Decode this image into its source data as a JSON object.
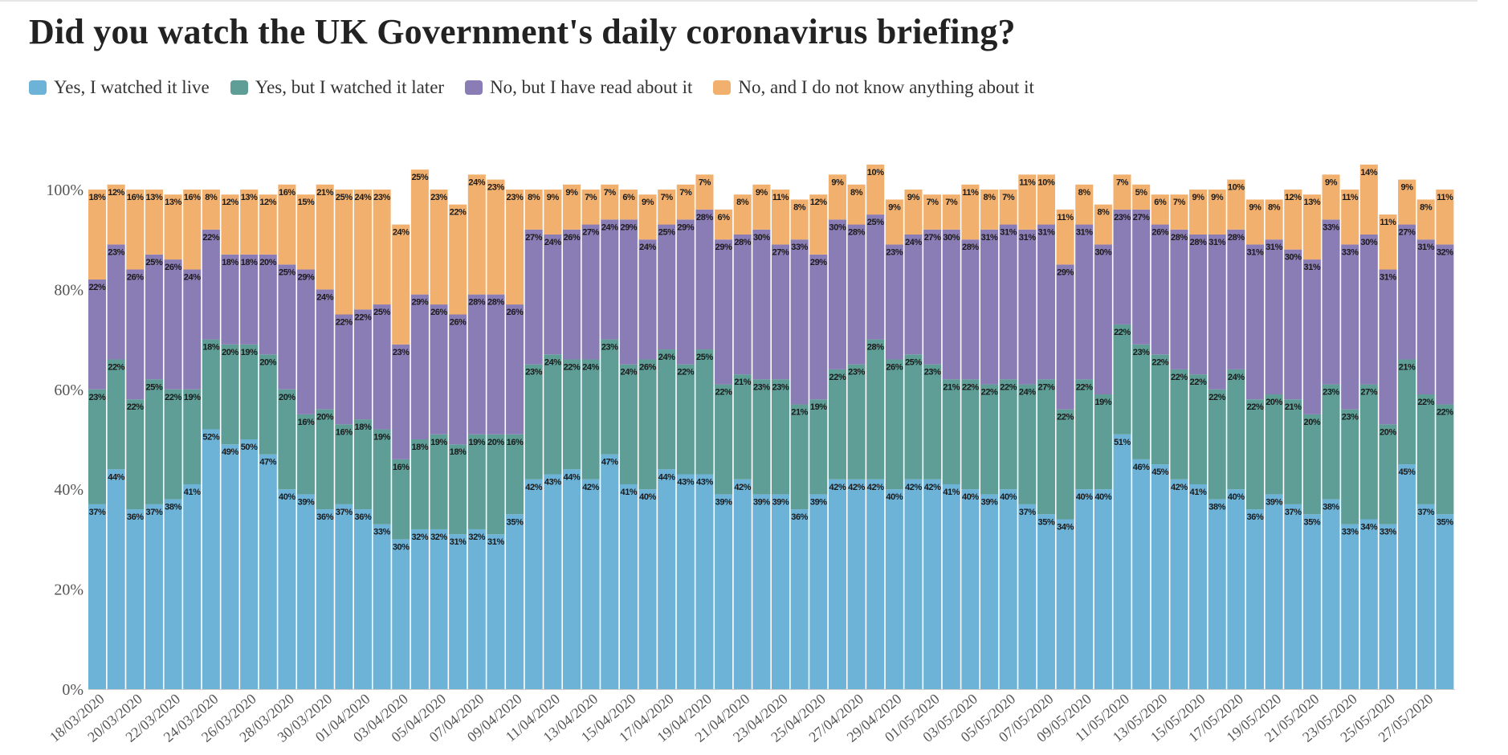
{
  "chart_data": {
    "type": "bar",
    "stacked": true,
    "title": "Did you watch the UK Government's daily coronavirus briefing?",
    "xlabel": "",
    "ylabel": "",
    "ylim": [
      0,
      100
    ],
    "y_ticks": [
      "0%",
      "20%",
      "40%",
      "60%",
      "80%",
      "100%"
    ],
    "grid": false,
    "legend_position": "top-left",
    "x_tick_labels": [
      "18/03/2020",
      "20/03/2020",
      "22/03/2020",
      "24/03/2020",
      "26/03/2020",
      "28/03/2020",
      "30/03/2020",
      "01/04/2020",
      "03/04/2020",
      "05/04/2020",
      "07/04/2020",
      "09/04/2020",
      "11/04/2020",
      "13/04/2020",
      "15/04/2020",
      "17/04/2020",
      "19/04/2020",
      "21/04/2020",
      "23/04/2020",
      "25/04/2020",
      "27/04/2020",
      "29/04/2020",
      "01/05/2020",
      "03/05/2020",
      "05/05/2020",
      "07/05/2020",
      "09/05/2020",
      "11/05/2020",
      "13/05/2020",
      "15/05/2020",
      "17/05/2020",
      "19/05/2020",
      "21/05/2020",
      "23/05/2020",
      "25/05/2020",
      "27/05/2020"
    ],
    "series": [
      {
        "name": "Yes, I watched it live",
        "color": "#6db3d8",
        "values": [
          37,
          44,
          36,
          37,
          38,
          41,
          52,
          49,
          50,
          47,
          40,
          39,
          36,
          37,
          36,
          33,
          30,
          32,
          32,
          31,
          32,
          31,
          35,
          42,
          43,
          44,
          42,
          47,
          41,
          40,
          44,
          43,
          43,
          39,
          42,
          39,
          39,
          36,
          39,
          42,
          42,
          42,
          40,
          42,
          42,
          41,
          40,
          39,
          40,
          37,
          35,
          34,
          40,
          40,
          51,
          46,
          45,
          42,
          41,
          38,
          40,
          36,
          39,
          37,
          35,
          38,
          33,
          34,
          33,
          45,
          37,
          35
        ]
      },
      {
        "name": "Yes, but I watched it later",
        "color": "#5e9e96",
        "values": [
          23,
          22,
          22,
          25,
          22,
          19,
          18,
          20,
          19,
          20,
          20,
          16,
          20,
          16,
          18,
          19,
          16,
          18,
          19,
          18,
          19,
          20,
          16,
          23,
          24,
          22,
          24,
          23,
          24,
          26,
          24,
          22,
          25,
          22,
          21,
          23,
          23,
          21,
          19,
          22,
          23,
          28,
          26,
          25,
          23,
          21,
          22,
          22,
          22,
          24,
          27,
          22,
          22,
          19,
          22,
          23,
          22,
          22,
          22,
          22,
          24,
          22,
          20,
          21,
          20,
          23,
          23,
          27,
          20,
          21,
          22,
          22
        ]
      },
      {
        "name": "No, but I have read about it",
        "color": "#8a7cb5",
        "values": [
          22,
          23,
          26,
          25,
          26,
          24,
          22,
          18,
          18,
          20,
          25,
          29,
          24,
          22,
          22,
          25,
          23,
          29,
          26,
          26,
          28,
          28,
          26,
          27,
          24,
          26,
          27,
          24,
          29,
          24,
          25,
          29,
          28,
          29,
          28,
          30,
          27,
          33,
          29,
          30,
          28,
          25,
          23,
          24,
          27,
          30,
          28,
          31,
          31,
          31,
          31,
          29,
          31,
          30,
          23,
          27,
          26,
          28,
          28,
          31,
          28,
          31,
          31,
          30,
          31,
          33,
          33,
          30,
          31,
          27,
          31,
          32
        ]
      },
      {
        "name": "No, and I do not know anything about it",
        "color": "#f2b06e",
        "values": [
          18,
          12,
          16,
          13,
          13,
          16,
          8,
          12,
          13,
          12,
          16,
          15,
          21,
          25,
          24,
          23,
          24,
          25,
          23,
          22,
          24,
          23,
          23,
          8,
          9,
          9,
          7,
          7,
          6,
          9,
          7,
          7,
          7,
          6,
          8,
          9,
          11,
          8,
          12,
          9,
          8,
          10,
          9,
          9,
          7,
          7,
          11,
          8,
          7,
          11,
          10,
          11,
          8,
          8,
          7,
          5,
          6,
          7,
          9,
          9,
          10,
          9,
          8,
          12,
          13,
          9,
          11,
          14,
          11,
          9,
          8,
          11
        ]
      }
    ]
  }
}
